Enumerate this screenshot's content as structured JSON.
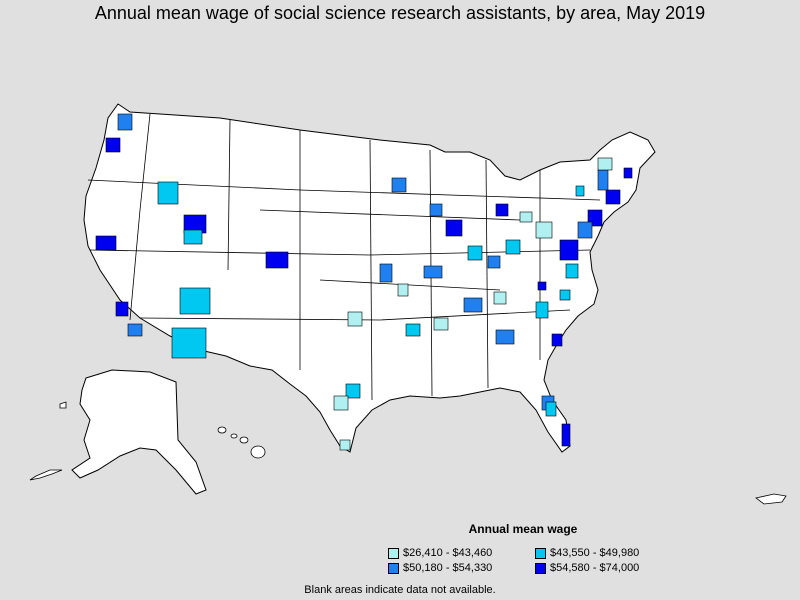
{
  "title": "Annual mean wage of social science research assistants, by area, May 2019",
  "legend": {
    "title": "Annual mean wage",
    "items": [
      {
        "label": "$26,410 - $43,460",
        "color": "#b0f0f0"
      },
      {
        "label": "$43,550 - $49,980",
        "color": "#00c8f0"
      },
      {
        "label": "$50,180 - $54,330",
        "color": "#2080f0"
      },
      {
        "label": "$54,580 - $74,000",
        "color": "#0000f0"
      }
    ]
  },
  "note": "Blank areas indicate data not available.",
  "colors": {
    "background": "#e0e0e0",
    "land": "#ffffff",
    "border": "#000000"
  }
}
